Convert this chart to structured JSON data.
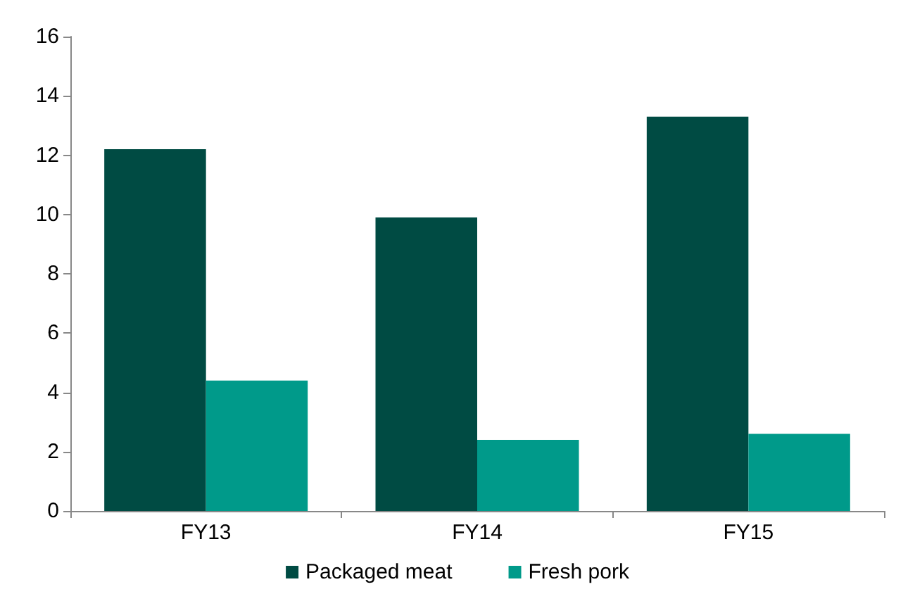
{
  "chart_data": {
    "type": "bar",
    "categories": [
      "FY13",
      "FY14",
      "FY15"
    ],
    "series": [
      {
        "name": "Packaged meat",
        "color": "#004b43",
        "values": [
          12.2,
          9.9,
          13.3
        ]
      },
      {
        "name": "Fresh pork",
        "color": "#009a8a",
        "values": [
          4.4,
          2.4,
          2.6
        ]
      }
    ],
    "ylim": [
      0,
      16
    ],
    "yticks": [
      0,
      2,
      4,
      6,
      8,
      10,
      12,
      14,
      16
    ],
    "grid": false,
    "legend": "bottom"
  }
}
